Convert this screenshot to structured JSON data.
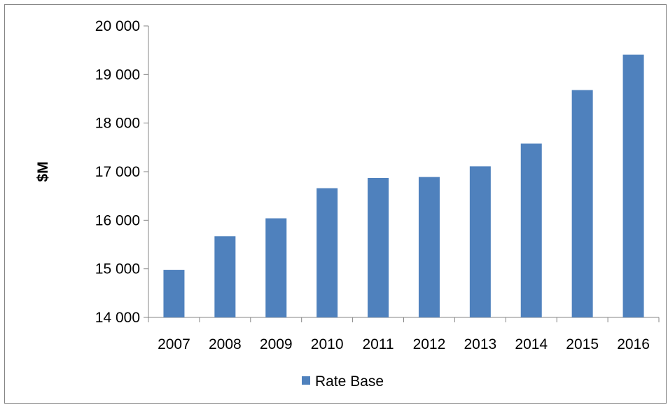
{
  "chart_data": {
    "type": "bar",
    "categories": [
      "2007",
      "2008",
      "2009",
      "2010",
      "2011",
      "2012",
      "2013",
      "2014",
      "2015",
      "2016"
    ],
    "series": [
      {
        "name": "Rate Base",
        "color": "#4F81BD",
        "values": [
          14980,
          15670,
          16040,
          16660,
          16870,
          16890,
          17110,
          17580,
          18680,
          19410
        ]
      }
    ],
    "ylabel": "$M",
    "ylim": [
      14000,
      20000
    ],
    "yticks": [
      14000,
      15000,
      16000,
      17000,
      18000,
      19000,
      20000
    ],
    "ytick_labels": [
      "14 000",
      "15 000",
      "16 000",
      "17 000",
      "18 000",
      "19 000",
      "20 000"
    ],
    "grid": false,
    "legend_position": "bottom"
  }
}
